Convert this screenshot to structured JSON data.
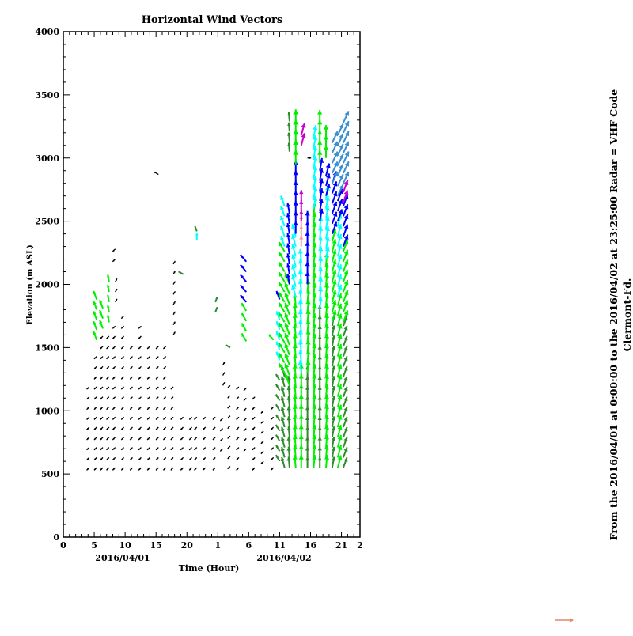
{
  "chart_data": {
    "type": "vector",
    "title": "Horizontal Wind Vectors",
    "xlabel": "Time (Hour)",
    "ylabel": "Elevation (m ASL)",
    "xlim": [
      0,
      48
    ],
    "ylim": [
      0,
      4000
    ],
    "x_tick_values": [
      0,
      5,
      10,
      15,
      20,
      25,
      30,
      35,
      40,
      45,
      48
    ],
    "x_tick_labels": [
      "0",
      "5",
      "10",
      "15",
      "20",
      "1",
      "6",
      "11",
      "16",
      "21",
      "2"
    ],
    "y_tick_values": [
      0,
      500,
      1000,
      1500,
      2000,
      2500,
      3000,
      3500,
      4000
    ],
    "y_tick_labels": [
      "0",
      "500",
      "1000",
      "1500",
      "2000",
      "2500",
      "3000",
      "3500",
      "4000"
    ],
    "date_labels": [
      {
        "x": 10,
        "text": "2016/04/01"
      },
      {
        "x": 36,
        "text": "2016/04/02"
      }
    ],
    "side_text": [
      "From the 2016/04/01 at  0:00:00 to the 2016/04/02 at 23:25:00 Radar = VHF Code",
      "Clermont-Fd."
    ],
    "grid": false,
    "colors": {
      "k": "#000000",
      "g": "#00f000",
      "d": "#2e8b2e",
      "c": "#00ffff",
      "b": "#0000ff",
      "s": "#3a8fd0",
      "m": "#cc00cc",
      "p": "#f0a0a0"
    },
    "reference_arrow_color": "#e08a64",
    "elevation_step": 80,
    "columns": [
      {
        "t": 4.2,
        "segments": [
          {
            "z": [
              550,
              1200
            ],
            "c": "k",
            "dir": 225,
            "speed": 2
          }
        ]
      },
      {
        "t": 5.4,
        "segments": [
          {
            "z": [
              550,
              1500
            ],
            "c": "k",
            "dir": 225,
            "speed": 2
          },
          {
            "z": [
              1560,
              1900
            ],
            "c": "g",
            "dir": 340,
            "speed": 5
          }
        ]
      },
      {
        "t": 6.4,
        "segments": [
          {
            "z": [
              550,
              1600
            ],
            "c": "k",
            "dir": 225,
            "speed": 2
          },
          {
            "z": [
              1650,
              1850
            ],
            "c": "g",
            "dir": 340,
            "speed": 5
          }
        ]
      },
      {
        "t": 7.4,
        "segments": [
          {
            "z": [
              550,
              1650
            ],
            "c": "k",
            "dir": 225,
            "speed": 2
          },
          {
            "z": [
              1700,
              2050
            ],
            "c": "g",
            "dir": 350,
            "speed": 4
          }
        ]
      },
      {
        "t": 8.4,
        "segments": [
          {
            "z": [
              550,
              1700
            ],
            "c": "k",
            "dir": 225,
            "speed": 2
          },
          {
            "z": [
              1860,
              2060
            ],
            "c": "k",
            "dir": 30,
            "speed": 2
          },
          {
            "z": [
              2200,
              2350
            ],
            "c": "k",
            "dir": 225,
            "speed": 2
          }
        ]
      },
      {
        "t": 9.8,
        "segments": [
          {
            "z": [
              550,
              1750
            ],
            "c": "k",
            "dir": 225,
            "speed": 2
          }
        ]
      },
      {
        "t": 11.2,
        "segments": [
          {
            "z": [
              550,
              1550
            ],
            "c": "k",
            "dir": 225,
            "speed": 2
          }
        ]
      },
      {
        "t": 12.6,
        "segments": [
          {
            "z": [
              550,
              1700
            ],
            "c": "k",
            "dir": 225,
            "speed": 2
          }
        ]
      },
      {
        "t": 14.0,
        "segments": [
          {
            "z": [
              550,
              1550
            ],
            "c": "k",
            "dir": 225,
            "speed": 2
          }
        ]
      },
      {
        "t": 15.4,
        "segments": [
          {
            "z": [
              550,
              1550
            ],
            "c": "k",
            "dir": 225,
            "speed": 2
          },
          {
            "z": [
              2870,
              2880
            ],
            "c": "k",
            "dir": 300,
            "speed": 3
          }
        ]
      },
      {
        "t": 16.6,
        "segments": [
          {
            "z": [
              550,
              1550
            ],
            "c": "k",
            "dir": 225,
            "speed": 2
          }
        ]
      },
      {
        "t": 17.8,
        "segments": [
          {
            "z": [
              550,
              1250
            ],
            "c": "k",
            "dir": 225,
            "speed": 2
          },
          {
            "z": [
              1600,
              2220
            ],
            "c": "k",
            "dir": 30,
            "speed": 2
          }
        ]
      },
      {
        "t": 19.4,
        "segments": [
          {
            "z": [
              550,
              1000
            ],
            "c": "k",
            "dir": 225,
            "speed": 2
          },
          {
            "z": [
              2080,
              2090
            ],
            "c": "d",
            "dir": 300,
            "speed": 3
          }
        ]
      },
      {
        "t": 20.8,
        "segments": [
          {
            "z": [
              550,
              1000
            ],
            "c": "k",
            "dir": 225,
            "speed": 2
          }
        ]
      },
      {
        "t": 21.6,
        "segments": [
          {
            "z": [
              550,
              1000
            ],
            "c": "k",
            "dir": 225,
            "speed": 2
          },
          {
            "z": [
              2350,
              2360
            ],
            "c": "c",
            "dir": 0,
            "speed": 4
          },
          {
            "z": [
              2420,
              2440
            ],
            "c": "d",
            "dir": 340,
            "speed": 3
          }
        ]
      },
      {
        "t": 23.0,
        "segments": [
          {
            "z": [
              550,
              1000
            ],
            "c": "k",
            "dir": 225,
            "speed": 2
          }
        ]
      },
      {
        "t": 24.6,
        "segments": [
          {
            "z": [
              550,
              1000
            ],
            "c": "k",
            "dir": 225,
            "speed": 2
          },
          {
            "z": [
              1780,
              1870
            ],
            "c": "d",
            "dir": 20,
            "speed": 3
          }
        ]
      },
      {
        "t": 25.8,
        "segments": [
          {
            "z": [
              700,
              1000
            ],
            "c": "k",
            "dir": 225,
            "speed": 2
          },
          {
            "z": [
              1200,
              1420
            ],
            "c": "k",
            "dir": 30,
            "speed": 2
          }
        ]
      },
      {
        "t": 27.0,
        "segments": [
          {
            "z": [
              560,
              1200
            ],
            "c": "k",
            "dir": 225,
            "speed": 2
          },
          {
            "z": [
              1500,
              1510
            ],
            "c": "d",
            "dir": 300,
            "speed": 3
          }
        ]
      },
      {
        "t": 28.4,
        "segments": [
          {
            "z": [
              550,
              1200
            ],
            "c": "k",
            "dir": 225,
            "speed": 2
          }
        ]
      },
      {
        "t": 29.6,
        "segments": [
          {
            "z": [
              700,
              1250
            ],
            "c": "k",
            "dir": 225,
            "speed": 2
          },
          {
            "z": [
              1550,
              1800
            ],
            "c": "g",
            "dir": 330,
            "speed": 5
          },
          {
            "z": [
              1860,
              2200
            ],
            "c": "b",
            "dir": 320,
            "speed": 5
          }
        ]
      },
      {
        "t": 31.0,
        "segments": [
          {
            "z": [
              550,
              1150
            ],
            "c": "k",
            "dir": 225,
            "speed": 2
          }
        ]
      },
      {
        "t": 32.4,
        "segments": [
          {
            "z": [
              600,
              1050
            ],
            "c": "k",
            "dir": 225,
            "speed": 2
          }
        ]
      },
      {
        "t": 34.0,
        "segments": [
          {
            "z": [
              550,
              1050
            ],
            "c": "k",
            "dir": 225,
            "speed": 2
          },
          {
            "z": [
              1560,
              1600
            ],
            "c": "g",
            "dir": 320,
            "speed": 4
          }
        ]
      },
      {
        "t": 35.0,
        "segments": [
          {
            "z": [
              600,
              1300
            ],
            "c": "d",
            "dir": 330,
            "speed": 4
          },
          {
            "z": [
              1400,
              1750
            ],
            "c": "c",
            "dir": 340,
            "speed": 5
          },
          {
            "z": [
              1880,
              1900
            ],
            "c": "b",
            "dir": 340,
            "speed": 5
          }
        ]
      },
      {
        "t": 35.8,
        "segments": [
          {
            "z": [
              550,
              1300
            ],
            "c": "d",
            "dir": 345,
            "speed": 6
          },
          {
            "z": [
              1300,
              2300
            ],
            "c": "g",
            "dir": 330,
            "speed": 6
          },
          {
            "z": [
              2300,
              2620
            ],
            "c": "c",
            "dir": 340,
            "speed": 6
          }
        ]
      },
      {
        "t": 36.6,
        "segments": [
          {
            "z": [
              550,
              1200
            ],
            "c": "d",
            "dir": 355,
            "speed": 6
          },
          {
            "z": [
              1200,
              2000
            ],
            "c": "g",
            "dir": 340,
            "speed": 7
          },
          {
            "z": [
              2000,
              2600
            ],
            "c": "b",
            "dir": 350,
            "speed": 6
          },
          {
            "z": [
              3050,
              3300
            ],
            "c": "d",
            "dir": 355,
            "speed": 5
          }
        ]
      },
      {
        "t": 37.6,
        "segments": [
          {
            "z": [
              550,
              1900
            ],
            "c": "g",
            "dir": 355,
            "speed": 7
          },
          {
            "z": [
              1900,
              2400
            ],
            "c": "c",
            "dir": 345,
            "speed": 7
          },
          {
            "z": [
              2400,
              2950
            ],
            "c": "b",
            "dir": 0,
            "speed": 7
          },
          {
            "z": [
              2950,
              3330
            ],
            "c": "g",
            "dir": 0,
            "speed": 8
          }
        ]
      },
      {
        "t": 38.5,
        "segments": [
          {
            "z": [
              550,
              1300
            ],
            "c": "g",
            "dir": 0,
            "speed": 7
          },
          {
            "z": [
              1300,
              2250
            ],
            "c": "c",
            "dir": 355,
            "speed": 7
          },
          {
            "z": [
              2300,
              2500
            ],
            "c": "p",
            "dir": 0,
            "speed": 6
          },
          {
            "z": [
              2500,
              2700
            ],
            "c": "m",
            "dir": 0,
            "speed": 6
          },
          {
            "z": [
              3100,
              3250
            ],
            "c": "m",
            "dir": 15,
            "speed": 7
          }
        ]
      },
      {
        "t": 39.5,
        "segments": [
          {
            "z": [
              550,
              1300
            ],
            "c": "d",
            "dir": 0,
            "speed": 6
          },
          {
            "z": [
              1300,
              2000
            ],
            "c": "g",
            "dir": 5,
            "speed": 7
          },
          {
            "z": [
              2000,
              2500
            ],
            "c": "b",
            "dir": 0,
            "speed": 7
          },
          {
            "z": [
              3000,
              3010
            ],
            "c": "k",
            "dir": 90,
            "speed": 2
          }
        ]
      },
      {
        "t": 40.5,
        "segments": [
          {
            "z": [
              550,
              2600
            ],
            "c": "g",
            "dir": 5,
            "speed": 7
          },
          {
            "z": [
              2600,
              3200
            ],
            "c": "c",
            "dir": 10,
            "speed": 7
          }
        ]
      },
      {
        "t": 41.5,
        "segments": [
          {
            "z": [
              550,
              1800
            ],
            "c": "d",
            "dir": 0,
            "speed": 6
          },
          {
            "z": [
              1800,
              2500
            ],
            "c": "c",
            "dir": 5,
            "speed": 7
          },
          {
            "z": [
              2500,
              2900
            ],
            "c": "b",
            "dir": 10,
            "speed": 7
          },
          {
            "z": [
              2960,
              3330
            ],
            "c": "g",
            "dir": 0,
            "speed": 7
          }
        ]
      },
      {
        "t": 42.5,
        "segments": [
          {
            "z": [
              550,
              2200
            ],
            "c": "g",
            "dir": 5,
            "speed": 7
          },
          {
            "z": [
              2200,
              2700
            ],
            "c": "c",
            "dir": 10,
            "speed": 7
          },
          {
            "z": [
              2700,
              2900
            ],
            "c": "b",
            "dir": 15,
            "speed": 7
          },
          {
            "z": [
              3000,
              3200
            ],
            "c": "g",
            "dir": 0,
            "speed": 7
          }
        ]
      },
      {
        "t": 43.5,
        "segments": [
          {
            "z": [
              550,
              1700
            ],
            "c": "d",
            "dir": 10,
            "speed": 6
          },
          {
            "z": [
              1700,
              2400
            ],
            "c": "g",
            "dir": 15,
            "speed": 7
          },
          {
            "z": [
              2400,
              2800
            ],
            "c": "b",
            "dir": 20,
            "speed": 7
          },
          {
            "z": [
              2800,
              3150
            ],
            "c": "s",
            "dir": 25,
            "speed": 7
          }
        ]
      },
      {
        "t": 44.4,
        "segments": [
          {
            "z": [
              550,
              1900
            ],
            "c": "g",
            "dir": 15,
            "speed": 7
          },
          {
            "z": [
              1900,
              2500
            ],
            "c": "c",
            "dir": 15,
            "speed": 7
          },
          {
            "z": [
              2500,
              2700
            ],
            "c": "b",
            "dir": 20,
            "speed": 7
          },
          {
            "z": [
              2700,
              3250
            ],
            "c": "s",
            "dir": 25,
            "speed": 7
          }
        ]
      },
      {
        "t": 45.3,
        "segments": [
          {
            "z": [
              550,
              1700
            ],
            "c": "d",
            "dir": 20,
            "speed": 6
          },
          {
            "z": [
              1700,
              2300
            ],
            "c": "g",
            "dir": 20,
            "speed": 7
          },
          {
            "z": [
              2300,
              2650
            ],
            "c": "b",
            "dir": 20,
            "speed": 7
          },
          {
            "z": [
              2650,
              2800
            ],
            "c": "m",
            "dir": 20,
            "speed": 7
          },
          {
            "z": [
              2800,
              3300
            ],
            "c": "s",
            "dir": 25,
            "speed": 7
          }
        ]
      }
    ]
  }
}
